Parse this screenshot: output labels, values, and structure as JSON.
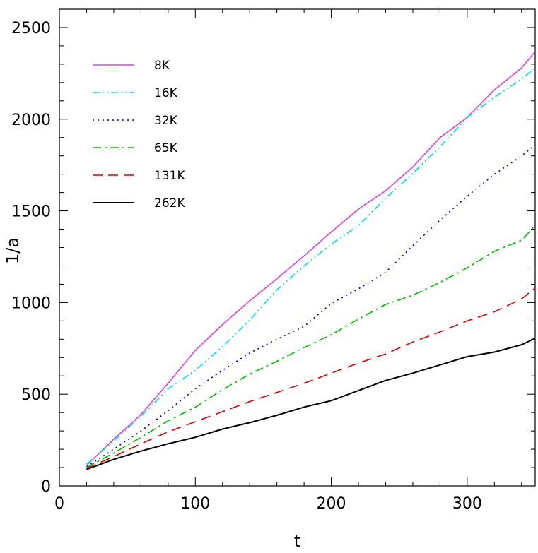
{
  "chart_data": {
    "type": "line",
    "title": "",
    "xlabel": "t",
    "ylabel": "1/a",
    "xlim": [
      0,
      350
    ],
    "ylim": [
      0,
      2600
    ],
    "x_ticks": [
      0,
      100,
      200,
      300
    ],
    "y_ticks": [
      0,
      500,
      1000,
      1500,
      2000,
      2500
    ],
    "x_tick_labels": [
      "0",
      "100",
      "200",
      "300"
    ],
    "y_tick_labels": [
      "0",
      "500",
      "1000",
      "1500",
      "2000",
      "2500"
    ],
    "grid": false,
    "legend_position": "top-left",
    "series": [
      {
        "name": "8K",
        "color": "#e040e0",
        "style": "solid",
        "points": [
          [
            20,
            112
          ],
          [
            40,
            255
          ],
          [
            60,
            390
          ],
          [
            80,
            560
          ],
          [
            100,
            740
          ],
          [
            120,
            880
          ],
          [
            140,
            1010
          ],
          [
            160,
            1130
          ],
          [
            180,
            1255
          ],
          [
            200,
            1385
          ],
          [
            220,
            1510
          ],
          [
            240,
            1610
          ],
          [
            260,
            1740
          ],
          [
            280,
            1900
          ],
          [
            300,
            2010
          ],
          [
            320,
            2160
          ],
          [
            340,
            2280
          ],
          [
            350,
            2370
          ]
        ]
      },
      {
        "name": "16K",
        "color": "#00e0e0",
        "style": "dash-dot-dot",
        "points": [
          [
            20,
            118
          ],
          [
            40,
            245
          ],
          [
            60,
            380
          ],
          [
            80,
            530
          ],
          [
            100,
            630
          ],
          [
            120,
            760
          ],
          [
            140,
            905
          ],
          [
            160,
            1070
          ],
          [
            180,
            1200
          ],
          [
            200,
            1320
          ],
          [
            220,
            1420
          ],
          [
            240,
            1570
          ],
          [
            260,
            1705
          ],
          [
            280,
            1850
          ],
          [
            300,
            2010
          ],
          [
            320,
            2120
          ],
          [
            340,
            2220
          ],
          [
            350,
            2280
          ]
        ]
      },
      {
        "name": "32K",
        "color": "#0000d0",
        "style": "dotted",
        "points": [
          [
            20,
            105
          ],
          [
            40,
            200
          ],
          [
            60,
            300
          ],
          [
            80,
            410
          ],
          [
            100,
            530
          ],
          [
            120,
            630
          ],
          [
            140,
            725
          ],
          [
            160,
            800
          ],
          [
            180,
            870
          ],
          [
            200,
            995
          ],
          [
            220,
            1075
          ],
          [
            240,
            1165
          ],
          [
            260,
            1310
          ],
          [
            280,
            1450
          ],
          [
            300,
            1580
          ],
          [
            320,
            1700
          ],
          [
            340,
            1800
          ],
          [
            350,
            1860
          ]
        ]
      },
      {
        "name": "65K",
        "color": "#00c000",
        "style": "dash-dot",
        "points": [
          [
            20,
            100
          ],
          [
            40,
            180
          ],
          [
            60,
            265
          ],
          [
            80,
            355
          ],
          [
            100,
            430
          ],
          [
            120,
            525
          ],
          [
            140,
            610
          ],
          [
            160,
            680
          ],
          [
            180,
            755
          ],
          [
            200,
            825
          ],
          [
            220,
            910
          ],
          [
            240,
            990
          ],
          [
            260,
            1040
          ],
          [
            280,
            1110
          ],
          [
            300,
            1190
          ],
          [
            320,
            1280
          ],
          [
            340,
            1340
          ],
          [
            350,
            1420
          ]
        ]
      },
      {
        "name": "131K",
        "color": "#e00000",
        "style": "dashed",
        "points": [
          [
            20,
            95
          ],
          [
            40,
            160
          ],
          [
            60,
            230
          ],
          [
            80,
            295
          ],
          [
            100,
            350
          ],
          [
            120,
            405
          ],
          [
            140,
            460
          ],
          [
            160,
            510
          ],
          [
            180,
            560
          ],
          [
            200,
            615
          ],
          [
            220,
            670
          ],
          [
            240,
            720
          ],
          [
            260,
            785
          ],
          [
            280,
            840
          ],
          [
            300,
            900
          ],
          [
            320,
            950
          ],
          [
            340,
            1020
          ],
          [
            350,
            1080
          ]
        ]
      },
      {
        "name": "262K",
        "color": "#000000",
        "style": "solid",
        "points": [
          [
            20,
            90
          ],
          [
            40,
            145
          ],
          [
            60,
            190
          ],
          [
            80,
            230
          ],
          [
            100,
            265
          ],
          [
            120,
            310
          ],
          [
            140,
            345
          ],
          [
            160,
            385
          ],
          [
            180,
            430
          ],
          [
            200,
            465
          ],
          [
            220,
            520
          ],
          [
            240,
            575
          ],
          [
            260,
            615
          ],
          [
            280,
            660
          ],
          [
            300,
            705
          ],
          [
            320,
            730
          ],
          [
            340,
            770
          ],
          [
            350,
            805
          ]
        ]
      }
    ]
  }
}
